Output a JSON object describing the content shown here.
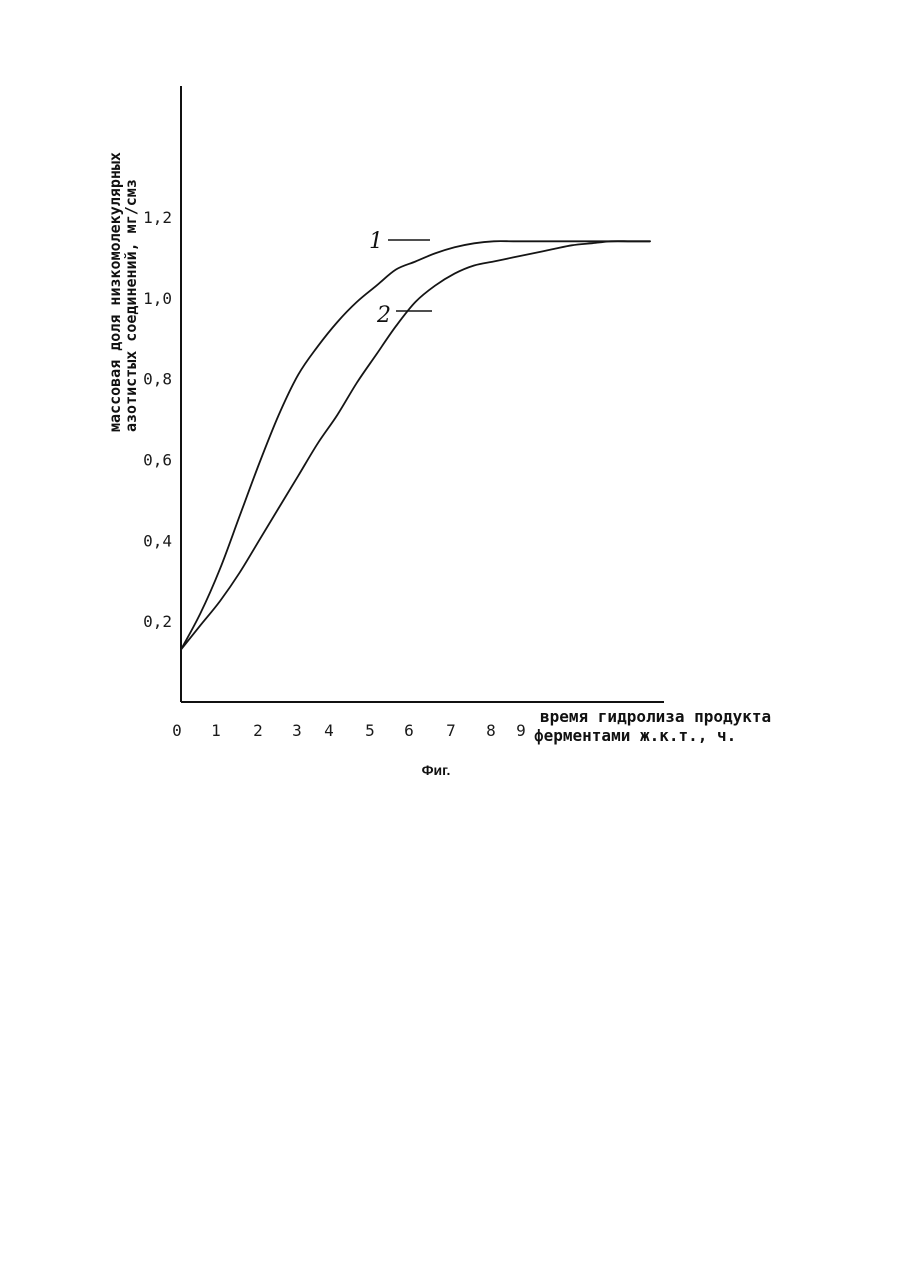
{
  "chart_data": {
    "type": "line",
    "title": "",
    "caption": "Фиг.",
    "ylabel_lines": [
      "массовая доля низкомолекулярных",
      "азотистых соединений, мг/смз"
    ],
    "xlabel_lines": [
      "время гидролиза продукта",
      "ферментами ж.к.т., ч."
    ],
    "x_ticks": [
      "0",
      "1",
      "2",
      "3",
      "4",
      "5",
      "6",
      "7",
      "8",
      "9"
    ],
    "y_ticks": [
      "0,2",
      "0,4",
      "0,6",
      "0,8",
      "1,0",
      "1,2"
    ],
    "xlim": [
      0,
      12
    ],
    "ylim": [
      0,
      1.45
    ],
    "grid": false,
    "legend": "none",
    "series": [
      {
        "name": "1",
        "x": [
          0,
          0.5,
          1,
          1.5,
          2,
          2.5,
          3,
          3.5,
          4,
          4.5,
          5,
          5.5,
          6,
          6.5,
          7,
          7.5,
          8,
          8.5,
          9,
          9.5,
          10,
          10.5,
          11,
          11.5,
          12
        ],
        "y": [
          0.13,
          0.22,
          0.33,
          0.46,
          0.59,
          0.71,
          0.81,
          0.88,
          0.94,
          0.99,
          1.03,
          1.07,
          1.09,
          1.11,
          1.125,
          1.135,
          1.14,
          1.14,
          1.14,
          1.14,
          1.14,
          1.14,
          1.14,
          1.14,
          1.14
        ]
      },
      {
        "name": "2",
        "x": [
          0,
          0.5,
          1,
          1.5,
          2,
          2.5,
          3,
          3.5,
          4,
          4.5,
          5,
          5.5,
          6,
          6.5,
          7,
          7.5,
          8,
          8.5,
          9,
          9.5,
          10,
          10.5,
          11,
          11.5,
          12
        ],
        "y": [
          0.13,
          0.19,
          0.25,
          0.32,
          0.4,
          0.48,
          0.56,
          0.64,
          0.71,
          0.79,
          0.86,
          0.93,
          0.99,
          1.03,
          1.06,
          1.08,
          1.09,
          1.1,
          1.11,
          1.12,
          1.13,
          1.135,
          1.14,
          1.14,
          1.14
        ]
      }
    ]
  }
}
